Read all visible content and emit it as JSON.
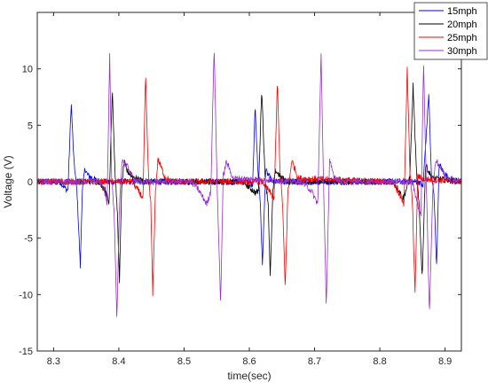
{
  "chart_data": {
    "type": "line",
    "title": "",
    "xlabel": "time(sec)",
    "ylabel": "Voltage (V)",
    "xlim": [
      8.275,
      8.925
    ],
    "ylim": [
      -15,
      15
    ],
    "x_ticks": [
      8.3,
      8.4,
      8.5,
      8.6,
      8.7,
      8.8,
      8.9
    ],
    "x_tick_labels": [
      "8.3",
      "8.4",
      "8.5",
      "8.6",
      "8.7",
      "8.8",
      "8.9"
    ],
    "y_ticks": [
      -15,
      -10,
      -5,
      0,
      5,
      10
    ],
    "y_tick_labels": [
      "-15",
      "-10",
      "-5",
      "0",
      "5",
      "10"
    ],
    "grid": false,
    "legend_position": "top-right",
    "series": [
      {
        "name": "15mph",
        "color": "#0000ff",
        "x": [
          8.275,
          8.31,
          8.318,
          8.322,
          8.327,
          8.331,
          8.336,
          8.341,
          8.344,
          8.348,
          8.352,
          8.36,
          8.37,
          8.38,
          8.6,
          8.605,
          8.609,
          8.613,
          8.617,
          8.62,
          8.625,
          8.635,
          8.86,
          8.866,
          8.871,
          8.875,
          8.879,
          8.883,
          8.887,
          8.891,
          8.896,
          8.905,
          8.915,
          8.925
        ],
        "y": [
          0,
          0,
          -0.6,
          -0.8,
          7.0,
          2.0,
          -1.0,
          -7.5,
          -0.8,
          1.2,
          0.6,
          0.3,
          0,
          0,
          0,
          -0.5,
          6.8,
          1.0,
          -2.0,
          -7.5,
          1.0,
          0,
          0,
          -0.5,
          4.0,
          7.8,
          0.5,
          -1.0,
          -7.5,
          1.6,
          1.0,
          0.3,
          0,
          0
        ]
      },
      {
        "name": "20mph",
        "color": "#000000",
        "x": [
          8.275,
          8.37,
          8.38,
          8.385,
          8.39,
          8.394,
          8.398,
          8.401,
          8.404,
          8.408,
          8.412,
          8.42,
          8.43,
          8.44,
          8.59,
          8.6,
          8.61,
          8.614,
          8.619,
          8.624,
          8.629,
          8.632,
          8.636,
          8.64,
          8.65,
          8.66,
          8.82,
          8.83,
          8.835,
          8.84,
          8.846,
          8.851,
          8.856,
          8.86,
          8.865,
          8.87,
          8.88,
          8.925
        ],
        "y": [
          0,
          0,
          -0.8,
          -2.0,
          8.3,
          1.0,
          -3.0,
          -9.0,
          -1.0,
          1.8,
          1.0,
          0.5,
          0.2,
          0,
          0,
          -0.5,
          -1.0,
          -0.8,
          8.3,
          0.5,
          -2.0,
          -8.5,
          -1.0,
          1.0,
          0.3,
          0,
          0,
          -0.8,
          -1.5,
          -0.8,
          0.5,
          8.5,
          1.0,
          -2.0,
          -8.5,
          1.5,
          0.3,
          0
        ]
      },
      {
        "name": "25mph",
        "color": "#ff0000",
        "x": [
          8.275,
          8.42,
          8.43,
          8.437,
          8.441,
          8.445,
          8.449,
          8.452,
          8.456,
          8.46,
          8.47,
          8.48,
          8.62,
          8.63,
          8.638,
          8.643,
          8.647,
          8.651,
          8.655,
          8.659,
          8.665,
          8.675,
          8.82,
          8.83,
          8.837,
          8.842,
          8.846,
          8.85,
          8.854,
          8.858,
          8.864,
          8.875,
          8.925
        ],
        "y": [
          0,
          0,
          -0.8,
          -1.5,
          9.5,
          1.0,
          -2.0,
          -10.0,
          -1.0,
          2.0,
          0.5,
          0,
          0,
          -0.8,
          -1.5,
          8.8,
          1.0,
          -2.0,
          -9.5,
          -1.0,
          1.9,
          0.3,
          0,
          -1.2,
          -2.0,
          10.0,
          1.0,
          -2.0,
          -10.0,
          0.5,
          0.3,
          0.2,
          0
        ]
      },
      {
        "name": "30mph",
        "color": "#9932cc",
        "x": [
          8.275,
          8.37,
          8.378,
          8.382,
          8.386,
          8.389,
          8.393,
          8.397,
          8.401,
          8.405,
          8.41,
          8.415,
          8.42,
          8.43,
          8.51,
          8.52,
          8.535,
          8.541,
          8.546,
          8.551,
          8.556,
          8.56,
          8.565,
          8.575,
          8.68,
          8.695,
          8.705,
          8.71,
          8.714,
          8.718,
          8.723,
          8.73,
          8.74,
          8.85,
          8.858,
          8.863,
          8.867,
          8.871,
          8.876,
          8.881,
          8.886,
          8.9,
          8.925
        ],
        "y": [
          0,
          0,
          -0.8,
          -2.0,
          11.5,
          0.5,
          -3.0,
          -12.5,
          -2.0,
          2.0,
          1.5,
          1.2,
          0.5,
          0,
          0,
          -0.5,
          -2.0,
          -0.8,
          12.0,
          -1.0,
          -10.8,
          0.5,
          1.8,
          0.3,
          0,
          -0.8,
          -2.0,
          11.5,
          -1.0,
          -11.0,
          1.8,
          0.5,
          0,
          0,
          -2.0,
          -3.0,
          10.5,
          0.5,
          -11.8,
          -1.0,
          2.0,
          0.5,
          0
        ]
      }
    ]
  }
}
